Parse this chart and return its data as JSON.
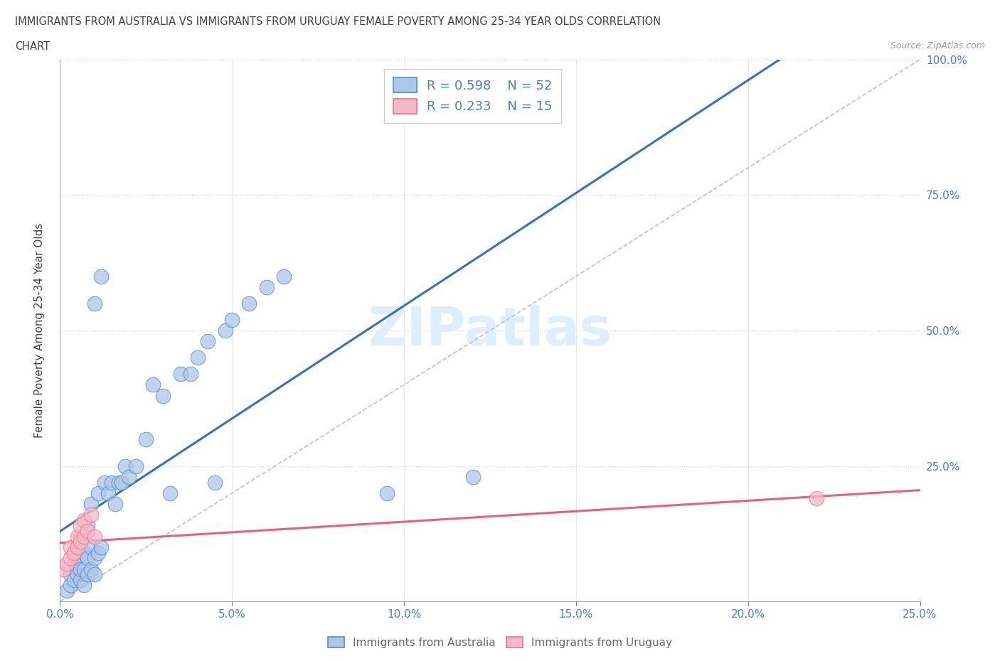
{
  "title_line1": "IMMIGRANTS FROM AUSTRALIA VS IMMIGRANTS FROM URUGUAY FEMALE POVERTY AMONG 25-34 YEAR OLDS CORRELATION",
  "title_line2": "CHART",
  "source": "Source: ZipAtlas.com",
  "ylabel": "Female Poverty Among 25-34 Year Olds",
  "xlim": [
    0.0,
    0.25
  ],
  "ylim": [
    0.0,
    1.0
  ],
  "xticks": [
    0.0,
    0.05,
    0.1,
    0.15,
    0.2,
    0.25
  ],
  "yticks": [
    0.0,
    0.25,
    0.5,
    0.75,
    1.0
  ],
  "xticklabels": [
    "0.0%",
    "5.0%",
    "10.0%",
    "15.0%",
    "20.0%",
    "25.0%"
  ],
  "yticklabels_right": [
    "",
    "25.0%",
    "50.0%",
    "75.0%",
    "100.0%"
  ],
  "australia_color": "#aec6e8",
  "uruguay_color": "#f5b8c8",
  "australia_edge_color": "#4e8dce",
  "uruguay_edge_color": "#e8748a",
  "australia_line_color": "#3a6fc0",
  "uruguay_line_color": "#e8607a",
  "ref_line_color": "#c0c0c0",
  "legend_label_australia": "Immigrants from Australia",
  "legend_label_uruguay": "Immigrants from Uruguay",
  "background_color": "#ffffff",
  "grid_color": "#e0e0e0",
  "tick_label_color": "#4a7fc0",
  "title_color": "#404040",
  "watermark_color": "#ddeeff",
  "australia_x": [
    0.002,
    0.003,
    0.003,
    0.004,
    0.004,
    0.005,
    0.005,
    0.005,
    0.006,
    0.006,
    0.006,
    0.007,
    0.007,
    0.007,
    0.008,
    0.008,
    0.008,
    0.009,
    0.009,
    0.009,
    0.01,
    0.01,
    0.01,
    0.011,
    0.011,
    0.012,
    0.012,
    0.013,
    0.014,
    0.015,
    0.016,
    0.017,
    0.018,
    0.019,
    0.02,
    0.022,
    0.025,
    0.027,
    0.03,
    0.032,
    0.035,
    0.038,
    0.04,
    0.043,
    0.045,
    0.048,
    0.05,
    0.055,
    0.06,
    0.065,
    0.095,
    0.12
  ],
  "australia_y": [
    0.02,
    0.03,
    0.05,
    0.04,
    0.07,
    0.05,
    0.08,
    0.1,
    0.04,
    0.06,
    0.12,
    0.03,
    0.06,
    0.09,
    0.05,
    0.08,
    0.14,
    0.06,
    0.1,
    0.18,
    0.05,
    0.08,
    0.55,
    0.09,
    0.2,
    0.1,
    0.6,
    0.22,
    0.2,
    0.22,
    0.18,
    0.22,
    0.22,
    0.25,
    0.23,
    0.25,
    0.3,
    0.4,
    0.38,
    0.2,
    0.42,
    0.42,
    0.45,
    0.48,
    0.22,
    0.5,
    0.52,
    0.55,
    0.58,
    0.6,
    0.2,
    0.23
  ],
  "uruguay_x": [
    0.001,
    0.002,
    0.003,
    0.003,
    0.004,
    0.005,
    0.005,
    0.006,
    0.006,
    0.007,
    0.007,
    0.008,
    0.009,
    0.01,
    0.22
  ],
  "uruguay_y": [
    0.06,
    0.07,
    0.08,
    0.1,
    0.09,
    0.1,
    0.12,
    0.11,
    0.14,
    0.12,
    0.15,
    0.13,
    0.16,
    0.12,
    0.19
  ]
}
